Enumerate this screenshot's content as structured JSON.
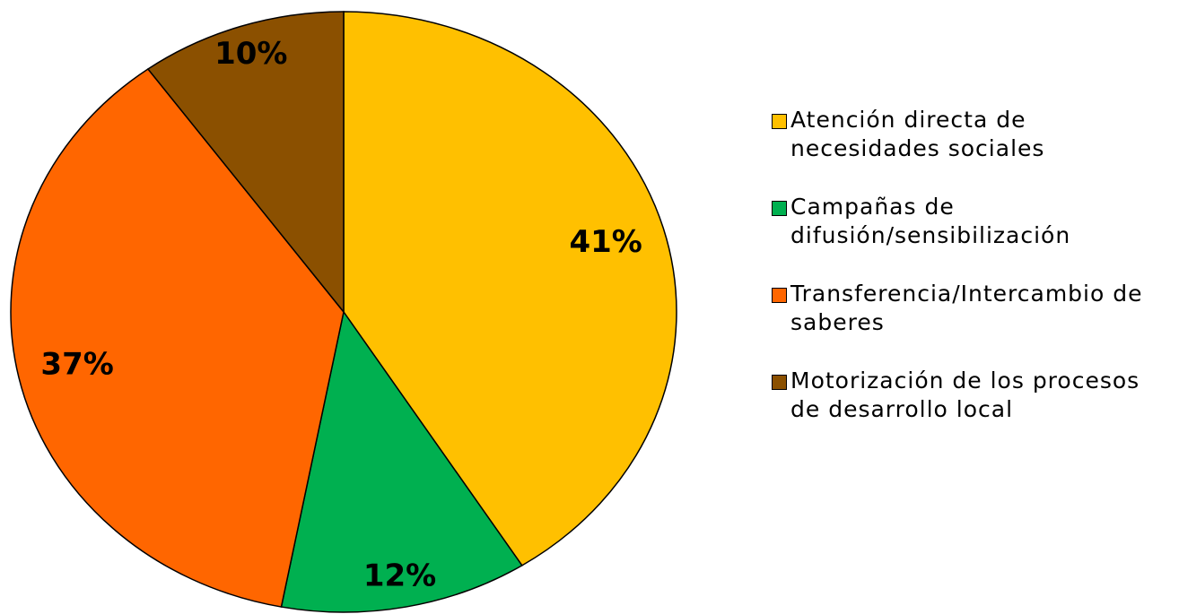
{
  "chart_data": {
    "type": "pie",
    "categories": [
      "Atención directa de necesidades sociales",
      "Campañas de difusión/sensibilización",
      "Transferencia/Intercambio de saberes",
      "Motorización de los procesos de desarrollo local"
    ],
    "values": [
      41,
      12,
      37,
      10
    ],
    "value_labels": [
      "41%",
      "12%",
      "37%",
      "10%"
    ],
    "colors": [
      "#FFC000",
      "#00B050",
      "#FF6600",
      "#8B5000"
    ],
    "legend": "right"
  }
}
